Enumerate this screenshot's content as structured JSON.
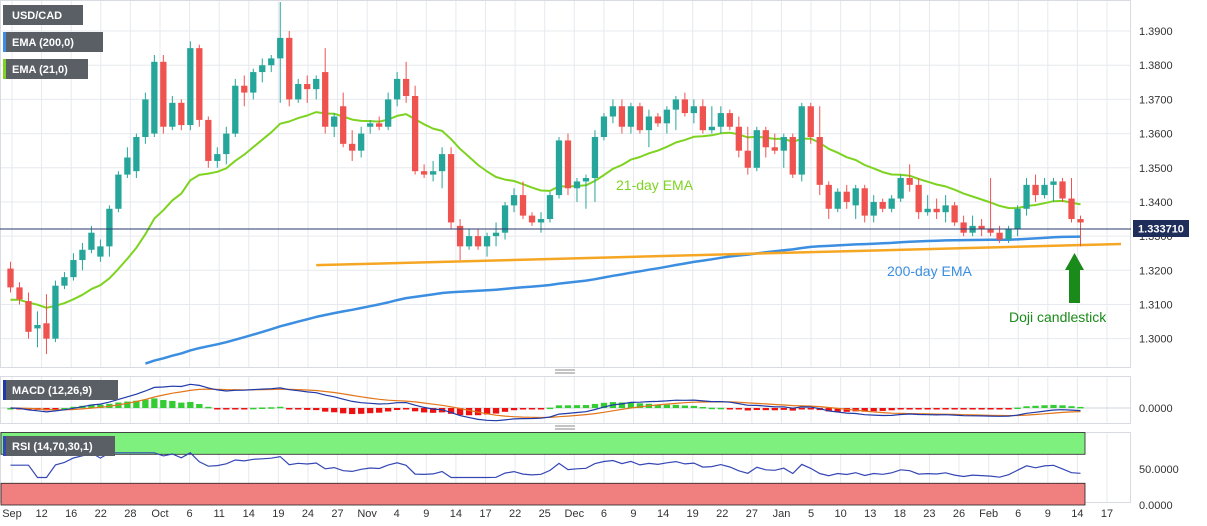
{
  "colors": {
    "bull": "#26a69a",
    "bear": "#ef5350",
    "ema21": "#7ed321",
    "ema200": "#3b8ee0",
    "support": "#f5a623",
    "arrow": "#1a8a1a",
    "rsi_upper_band": "#7ef07e",
    "rsi_lower_band": "#f07f7f",
    "grid": "#e6e9ee",
    "label_box": "#5a5f66"
  },
  "main_panel": {
    "legend": [
      {
        "text": "USD/CAD",
        "color": "#5a5f66"
      },
      {
        "text": "EMA (200,0)",
        "color": "#3b8ee0"
      },
      {
        "text": "EMA (21,0)",
        "color": "#7ed321"
      }
    ],
    "last_price": "1.333710",
    "annotations": {
      "ema21_label": "21-day EMA",
      "ema200_label": "200-day EMA",
      "doji_label": "Doji candlestick"
    },
    "y_ticks": [
      "1.3900",
      "1.3800",
      "1.3700",
      "1.3600",
      "1.3500",
      "1.3400",
      "1.3300",
      "1.3200",
      "1.3100",
      "1.3000"
    ]
  },
  "macd_panel": {
    "legend": "MACD (12,26,9)",
    "y_ticks": [
      "0.0000"
    ]
  },
  "rsi_panel": {
    "legend": "RSI (14,70,30,1)",
    "y_ticks": [
      "50.0000",
      "0.0000"
    ]
  },
  "x_axis_labels": [
    "Sep",
    "12",
    "16",
    "22",
    "28",
    "Oct",
    "6",
    "11",
    "14",
    "19",
    "24",
    "27",
    "Nov",
    "4",
    "9",
    "14",
    "17",
    "22",
    "25",
    "Dec",
    "6",
    "9",
    "14",
    "19",
    "22",
    "27",
    "Jan",
    "5",
    "10",
    "13",
    "18",
    "23",
    "26",
    "Feb",
    "6",
    "9",
    "14",
    "17"
  ],
  "chart_data": {
    "type": "candlestick",
    "title": "USD/CAD",
    "ylim": [
      1.292,
      1.3985
    ],
    "candles": [
      {
        "o": 1.3205,
        "h": 1.3225,
        "l": 1.3135,
        "c": 1.315
      },
      {
        "o": 1.315,
        "h": 1.3165,
        "l": 1.31,
        "c": 1.3115
      },
      {
        "o": 1.311,
        "h": 1.3135,
        "l": 1.3,
        "c": 1.302
      },
      {
        "o": 1.303,
        "h": 1.308,
        "l": 1.2975,
        "c": 1.304
      },
      {
        "o": 1.3045,
        "h": 1.313,
        "l": 1.2955,
        "c": 1.3
      },
      {
        "o": 1.3,
        "h": 1.317,
        "l": 1.299,
        "c": 1.3155
      },
      {
        "o": 1.3155,
        "h": 1.3195,
        "l": 1.3145,
        "c": 1.318
      },
      {
        "o": 1.318,
        "h": 1.325,
        "l": 1.317,
        "c": 1.323
      },
      {
        "o": 1.323,
        "h": 1.328,
        "l": 1.32,
        "c": 1.326
      },
      {
        "o": 1.326,
        "h": 1.333,
        "l": 1.325,
        "c": 1.331
      },
      {
        "o": 1.324,
        "h": 1.329,
        "l": 1.3225,
        "c": 1.327
      },
      {
        "o": 1.327,
        "h": 1.339,
        "l": 1.324,
        "c": 1.338
      },
      {
        "o": 1.338,
        "h": 1.349,
        "l": 1.337,
        "c": 1.348
      },
      {
        "o": 1.348,
        "h": 1.356,
        "l": 1.347,
        "c": 1.353
      },
      {
        "o": 1.349,
        "h": 1.36,
        "l": 1.347,
        "c": 1.359
      },
      {
        "o": 1.359,
        "h": 1.372,
        "l": 1.357,
        "c": 1.37
      },
      {
        "o": 1.36,
        "h": 1.383,
        "l": 1.359,
        "c": 1.381
      },
      {
        "o": 1.381,
        "h": 1.383,
        "l": 1.36,
        "c": 1.362
      },
      {
        "o": 1.362,
        "h": 1.371,
        "l": 1.361,
        "c": 1.369
      },
      {
        "o": 1.369,
        "h": 1.37,
        "l": 1.361,
        "c": 1.3625
      },
      {
        "o": 1.3625,
        "h": 1.387,
        "l": 1.361,
        "c": 1.385
      },
      {
        "o": 1.385,
        "h": 1.386,
        "l": 1.362,
        "c": 1.364
      },
      {
        "o": 1.364,
        "h": 1.365,
        "l": 1.35,
        "c": 1.352
      },
      {
        "o": 1.352,
        "h": 1.356,
        "l": 1.35,
        "c": 1.354
      },
      {
        "o": 1.354,
        "h": 1.362,
        "l": 1.351,
        "c": 1.36
      },
      {
        "o": 1.36,
        "h": 1.376,
        "l": 1.359,
        "c": 1.374
      },
      {
        "o": 1.374,
        "h": 1.377,
        "l": 1.368,
        "c": 1.372
      },
      {
        "o": 1.372,
        "h": 1.379,
        "l": 1.37,
        "c": 1.378
      },
      {
        "o": 1.378,
        "h": 1.382,
        "l": 1.375,
        "c": 1.38
      },
      {
        "o": 1.38,
        "h": 1.383,
        "l": 1.378,
        "c": 1.382
      },
      {
        "o": 1.382,
        "h": 1.3985,
        "l": 1.369,
        "c": 1.388
      },
      {
        "o": 1.388,
        "h": 1.39,
        "l": 1.368,
        "c": 1.37
      },
      {
        "o": 1.37,
        "h": 1.376,
        "l": 1.369,
        "c": 1.3745
      },
      {
        "o": 1.3745,
        "h": 1.377,
        "l": 1.369,
        "c": 1.373
      },
      {
        "o": 1.373,
        "h": 1.377,
        "l": 1.37,
        "c": 1.376
      },
      {
        "o": 1.378,
        "h": 1.385,
        "l": 1.36,
        "c": 1.362
      },
      {
        "o": 1.362,
        "h": 1.366,
        "l": 1.359,
        "c": 1.365
      },
      {
        "o": 1.368,
        "h": 1.372,
        "l": 1.356,
        "c": 1.357
      },
      {
        "o": 1.357,
        "h": 1.361,
        "l": 1.352,
        "c": 1.355
      },
      {
        "o": 1.355,
        "h": 1.362,
        "l": 1.353,
        "c": 1.36
      },
      {
        "o": 1.362,
        "h": 1.364,
        "l": 1.36,
        "c": 1.363
      },
      {
        "o": 1.363,
        "h": 1.365,
        "l": 1.361,
        "c": 1.362
      },
      {
        "o": 1.362,
        "h": 1.372,
        "l": 1.361,
        "c": 1.37
      },
      {
        "o": 1.37,
        "h": 1.378,
        "l": 1.368,
        "c": 1.376
      },
      {
        "o": 1.376,
        "h": 1.381,
        "l": 1.369,
        "c": 1.371
      },
      {
        "o": 1.371,
        "h": 1.374,
        "l": 1.348,
        "c": 1.349
      },
      {
        "o": 1.349,
        "h": 1.351,
        "l": 1.347,
        "c": 1.348
      },
      {
        "o": 1.348,
        "h": 1.352,
        "l": 1.346,
        "c": 1.349
      },
      {
        "o": 1.349,
        "h": 1.356,
        "l": 1.344,
        "c": 1.354
      },
      {
        "o": 1.354,
        "h": 1.356,
        "l": 1.332,
        "c": 1.334
      },
      {
        "o": 1.333,
        "h": 1.335,
        "l": 1.323,
        "c": 1.327
      },
      {
        "o": 1.327,
        "h": 1.332,
        "l": 1.326,
        "c": 1.33
      },
      {
        "o": 1.33,
        "h": 1.332,
        "l": 1.326,
        "c": 1.327
      },
      {
        "o": 1.327,
        "h": 1.331,
        "l": 1.324,
        "c": 1.33
      },
      {
        "o": 1.33,
        "h": 1.334,
        "l": 1.327,
        "c": 1.331
      },
      {
        "o": 1.331,
        "h": 1.34,
        "l": 1.329,
        "c": 1.339
      },
      {
        "o": 1.339,
        "h": 1.344,
        "l": 1.337,
        "c": 1.342
      },
      {
        "o": 1.342,
        "h": 1.346,
        "l": 1.335,
        "c": 1.336
      },
      {
        "o": 1.336,
        "h": 1.337,
        "l": 1.333,
        "c": 1.334
      },
      {
        "o": 1.334,
        "h": 1.337,
        "l": 1.331,
        "c": 1.335
      },
      {
        "o": 1.335,
        "h": 1.343,
        "l": 1.334,
        "c": 1.342
      },
      {
        "o": 1.342,
        "h": 1.359,
        "l": 1.341,
        "c": 1.358
      },
      {
        "o": 1.358,
        "h": 1.36,
        "l": 1.342,
        "c": 1.344
      },
      {
        "o": 1.344,
        "h": 1.347,
        "l": 1.34,
        "c": 1.346
      },
      {
        "o": 1.346,
        "h": 1.348,
        "l": 1.338,
        "c": 1.347
      },
      {
        "o": 1.347,
        "h": 1.361,
        "l": 1.34,
        "c": 1.359
      },
      {
        "o": 1.359,
        "h": 1.366,
        "l": 1.358,
        "c": 1.365
      },
      {
        "o": 1.365,
        "h": 1.37,
        "l": 1.363,
        "c": 1.368
      },
      {
        "o": 1.368,
        "h": 1.37,
        "l": 1.36,
        "c": 1.362
      },
      {
        "o": 1.362,
        "h": 1.369,
        "l": 1.36,
        "c": 1.368
      },
      {
        "o": 1.368,
        "h": 1.369,
        "l": 1.36,
        "c": 1.361
      },
      {
        "o": 1.361,
        "h": 1.367,
        "l": 1.356,
        "c": 1.365
      },
      {
        "o": 1.365,
        "h": 1.366,
        "l": 1.362,
        "c": 1.363
      },
      {
        "o": 1.363,
        "h": 1.368,
        "l": 1.36,
        "c": 1.367
      },
      {
        "o": 1.367,
        "h": 1.371,
        "l": 1.361,
        "c": 1.37
      },
      {
        "o": 1.37,
        "h": 1.372,
        "l": 1.365,
        "c": 1.366
      },
      {
        "o": 1.366,
        "h": 1.37,
        "l": 1.363,
        "c": 1.368
      },
      {
        "o": 1.368,
        "h": 1.37,
        "l": 1.36,
        "c": 1.361
      },
      {
        "o": 1.361,
        "h": 1.368,
        "l": 1.36,
        "c": 1.362
      },
      {
        "o": 1.362,
        "h": 1.368,
        "l": 1.36,
        "c": 1.366
      },
      {
        "o": 1.366,
        "h": 1.367,
        "l": 1.361,
        "c": 1.362
      },
      {
        "o": 1.362,
        "h": 1.365,
        "l": 1.353,
        "c": 1.355
      },
      {
        "o": 1.355,
        "h": 1.362,
        "l": 1.348,
        "c": 1.35
      },
      {
        "o": 1.35,
        "h": 1.362,
        "l": 1.349,
        "c": 1.361
      },
      {
        "o": 1.361,
        "h": 1.362,
        "l": 1.353,
        "c": 1.356
      },
      {
        "o": 1.356,
        "h": 1.36,
        "l": 1.354,
        "c": 1.355
      },
      {
        "o": 1.355,
        "h": 1.36,
        "l": 1.35,
        "c": 1.359
      },
      {
        "o": 1.359,
        "h": 1.36,
        "l": 1.347,
        "c": 1.348
      },
      {
        "o": 1.348,
        "h": 1.369,
        "l": 1.346,
        "c": 1.368
      },
      {
        "o": 1.368,
        "h": 1.369,
        "l": 1.357,
        "c": 1.359
      },
      {
        "o": 1.359,
        "h": 1.368,
        "l": 1.342,
        "c": 1.345
      },
      {
        "o": 1.345,
        "h": 1.346,
        "l": 1.335,
        "c": 1.338
      },
      {
        "o": 1.338,
        "h": 1.344,
        "l": 1.337,
        "c": 1.343
      },
      {
        "o": 1.343,
        "h": 1.345,
        "l": 1.338,
        "c": 1.34
      },
      {
        "o": 1.339,
        "h": 1.345,
        "l": 1.335,
        "c": 1.344
      },
      {
        "o": 1.344,
        "h": 1.345,
        "l": 1.334,
        "c": 1.336
      },
      {
        "o": 1.336,
        "h": 1.342,
        "l": 1.334,
        "c": 1.34
      },
      {
        "o": 1.34,
        "h": 1.341,
        "l": 1.337,
        "c": 1.338
      },
      {
        "o": 1.338,
        "h": 1.342,
        "l": 1.337,
        "c": 1.341
      },
      {
        "o": 1.341,
        "h": 1.348,
        "l": 1.34,
        "c": 1.347
      },
      {
        "o": 1.347,
        "h": 1.351,
        "l": 1.343,
        "c": 1.345
      },
      {
        "o": 1.345,
        "h": 1.347,
        "l": 1.335,
        "c": 1.337
      },
      {
        "o": 1.337,
        "h": 1.342,
        "l": 1.336,
        "c": 1.338
      },
      {
        "o": 1.338,
        "h": 1.341,
        "l": 1.335,
        "c": 1.337
      },
      {
        "o": 1.337,
        "h": 1.342,
        "l": 1.334,
        "c": 1.339
      },
      {
        "o": 1.339,
        "h": 1.34,
        "l": 1.333,
        "c": 1.334
      },
      {
        "o": 1.334,
        "h": 1.336,
        "l": 1.33,
        "c": 1.331
      },
      {
        "o": 1.331,
        "h": 1.336,
        "l": 1.33,
        "c": 1.333
      },
      {
        "o": 1.333,
        "h": 1.335,
        "l": 1.33,
        "c": 1.332
      },
      {
        "o": 1.332,
        "h": 1.347,
        "l": 1.33,
        "c": 1.331
      },
      {
        "o": 1.331,
        "h": 1.333,
        "l": 1.328,
        "c": 1.329
      },
      {
        "o": 1.329,
        "h": 1.333,
        "l": 1.328,
        "c": 1.332
      },
      {
        "o": 1.332,
        "h": 1.339,
        "l": 1.33,
        "c": 1.338
      },
      {
        "o": 1.338,
        "h": 1.347,
        "l": 1.336,
        "c": 1.345
      },
      {
        "o": 1.345,
        "h": 1.348,
        "l": 1.34,
        "c": 1.342
      },
      {
        "o": 1.342,
        "h": 1.347,
        "l": 1.341,
        "c": 1.345
      },
      {
        "o": 1.345,
        "h": 1.347,
        "l": 1.34,
        "c": 1.346
      },
      {
        "o": 1.346,
        "h": 1.347,
        "l": 1.34,
        "c": 1.341
      },
      {
        "o": 1.341,
        "h": 1.347,
        "l": 1.334,
        "c": 1.335
      },
      {
        "o": 1.335,
        "h": 1.336,
        "l": 1.327,
        "c": 1.334
      }
    ]
  }
}
